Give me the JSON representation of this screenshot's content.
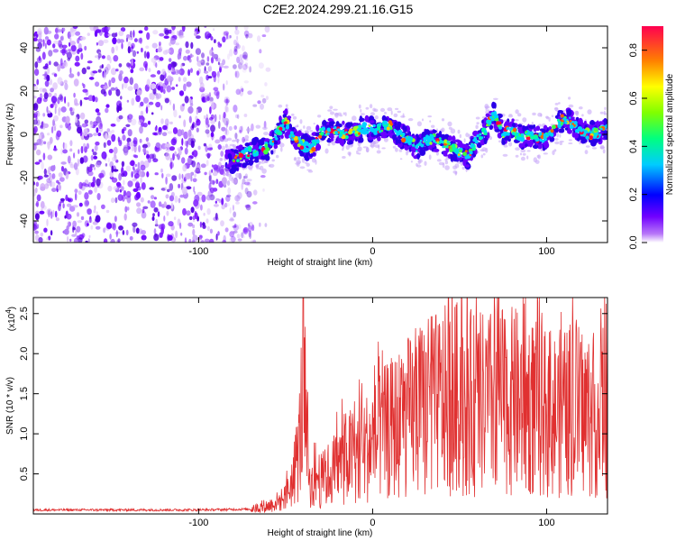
{
  "title": "C2E2.2024.299.21.16.G15",
  "chart_data": [
    {
      "type": "heatmap",
      "xlabel": "Height of straight line (km)",
      "ylabel": "Frequency (Hz)",
      "xlim": [
        -195,
        135
      ],
      "ylim": [
        -50,
        50
      ],
      "x_ticks": [
        -100,
        0,
        100
      ],
      "y_ticks": [
        -40,
        -20,
        0,
        20,
        40
      ],
      "colorbar": {
        "label": "Normalized spectral amplitude",
        "range": [
          0.0,
          0.9
        ],
        "ticks": [
          "0.0",
          "0.2",
          "0.4",
          "0.6",
          "0.8"
        ]
      },
      "noise_region_x": [
        -195,
        -75
      ],
      "signal_track": {
        "x": [
          -85,
          -80,
          -75,
          -70,
          -65,
          -60,
          -55,
          -50,
          -45,
          -40,
          -35,
          -30,
          -25,
          -20,
          -15,
          -10,
          -5,
          0,
          5,
          10,
          15,
          20,
          25,
          30,
          35,
          40,
          45,
          50,
          55,
          60,
          65,
          70,
          75,
          80,
          85,
          90,
          95,
          100,
          105,
          110,
          115,
          120,
          125,
          130,
          135
        ],
        "y": [
          -13,
          -12,
          -10,
          -8,
          -7,
          -6,
          0,
          6,
          -2,
          -5,
          -7,
          1,
          2,
          1,
          0,
          1,
          3,
          2,
          3,
          4,
          0,
          -2,
          -6,
          -3,
          -2,
          -4,
          -6,
          -8,
          -10,
          -2,
          2,
          10,
          0,
          2,
          -1,
          0,
          -2,
          -1,
          3,
          8,
          5,
          1,
          0,
          1,
          4
        ]
      }
    },
    {
      "type": "line",
      "xlabel": "Height of straight line (km)",
      "ylabel": "SNR (10 * v/v)",
      "y_multiplier": "(x10",
      "y_multiplier_exp": "4",
      "xlim": [
        -195,
        135
      ],
      "ylim": [
        0,
        27000
      ],
      "x_ticks": [
        -100,
        0,
        100
      ],
      "y_ticks": [
        5000,
        10000,
        15000,
        20000,
        25000
      ],
      "y_tick_labels": [
        "0.5",
        "1.0",
        "1.5",
        "2.0",
        "2.5"
      ],
      "color": "#e03030",
      "series": [
        {
          "x": [
            -195,
            -150,
            -100,
            -70,
            -60,
            -50,
            -45,
            -42,
            -40,
            -38,
            -35,
            -32,
            -30,
            -25,
            -20,
            -15,
            -10,
            -5,
            0,
            10,
            20,
            30,
            40,
            50,
            60,
            70,
            80,
            90,
            100,
            110,
            120,
            130,
            135
          ],
          "y": [
            500,
            500,
            500,
            600,
            1000,
            2000,
            5000,
            9000,
            16000,
            8000,
            3000,
            5000,
            4000,
            5000,
            6000,
            7000,
            7500,
            8000,
            9000,
            10500,
            12000,
            13000,
            14000,
            14500,
            13500,
            14000,
            14000,
            13500,
            12500,
            12500,
            13000,
            12000,
            13000
          ]
        }
      ]
    }
  ]
}
